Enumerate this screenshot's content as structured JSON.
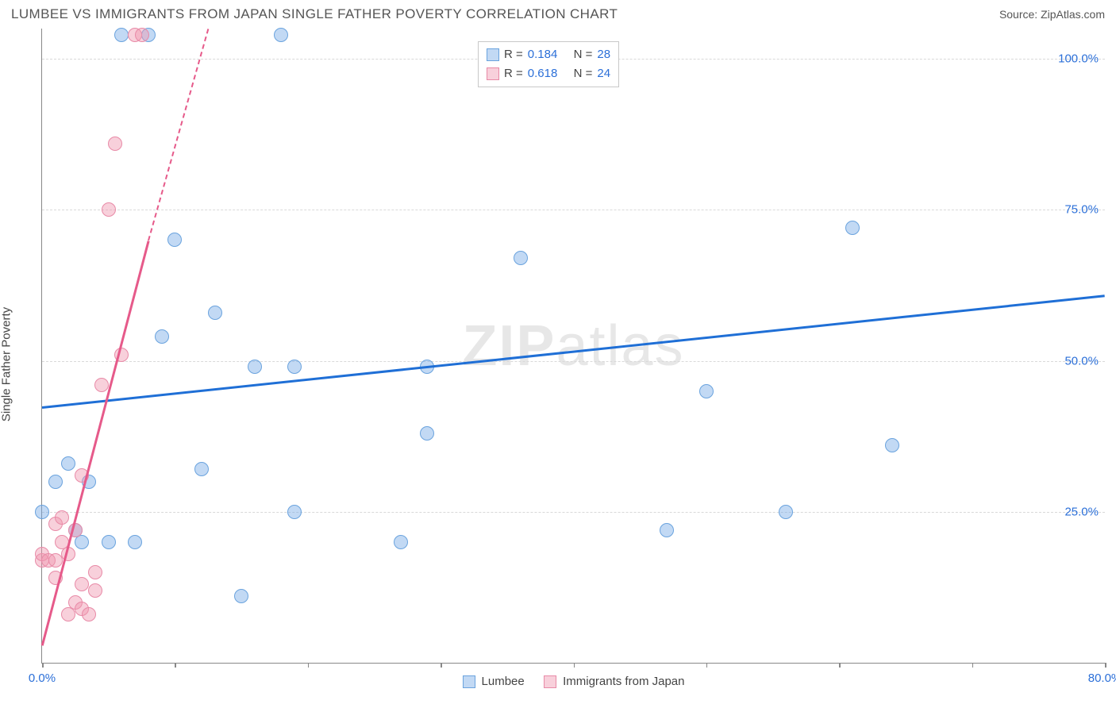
{
  "title": "LUMBEE VS IMMIGRANTS FROM JAPAN SINGLE FATHER POVERTY CORRELATION CHART",
  "source": "Source: ZipAtlas.com",
  "ylabel": "Single Father Poverty",
  "watermark_a": "ZIP",
  "watermark_b": "atlas",
  "chart": {
    "type": "scatter",
    "xlim": [
      0,
      80
    ],
    "ylim": [
      0,
      105
    ],
    "xticks": [
      0,
      10,
      20,
      30,
      40,
      50,
      60,
      70,
      80
    ],
    "xtick_labels": {
      "0": "0.0%",
      "80": "80.0%"
    },
    "yticks": [
      25,
      50,
      75,
      100
    ],
    "ytick_labels": {
      "25": "25.0%",
      "50": "50.0%",
      "75": "75.0%",
      "100": "100.0%"
    },
    "grid_color": "#d9d9d9",
    "axis_label_color": "#2b6fd8",
    "background": "#ffffff",
    "marker_radius": 9,
    "series": [
      {
        "name": "Lumbee",
        "color_fill": "rgba(120,170,230,0.45)",
        "color_stroke": "#6aa3de",
        "R": "0.184",
        "N": "28",
        "trend": {
          "x1": 0,
          "y1": 42.5,
          "x2": 80,
          "y2": 61,
          "color": "#1f6fd6",
          "width": 2.5
        },
        "points": [
          [
            0,
            25
          ],
          [
            1,
            30
          ],
          [
            2,
            33
          ],
          [
            2.5,
            22
          ],
          [
            3,
            20
          ],
          [
            3.5,
            30
          ],
          [
            5,
            20
          ],
          [
            6,
            104
          ],
          [
            7,
            20
          ],
          [
            8,
            104
          ],
          [
            9,
            54
          ],
          [
            10,
            70
          ],
          [
            12,
            32
          ],
          [
            13,
            58
          ],
          [
            15,
            11
          ],
          [
            16,
            49
          ],
          [
            18,
            104
          ],
          [
            19,
            49
          ],
          [
            19,
            25
          ],
          [
            27,
            20
          ],
          [
            29,
            49
          ],
          [
            29,
            38
          ],
          [
            36,
            67
          ],
          [
            47,
            22
          ],
          [
            50,
            45
          ],
          [
            56,
            25
          ],
          [
            61,
            72
          ],
          [
            64,
            36
          ]
        ]
      },
      {
        "name": "Immigrants from Japan",
        "color_fill": "rgba(240,150,175,0.45)",
        "color_stroke": "#e88aa7",
        "R": "0.618",
        "N": "24",
        "trend_solid": {
          "x1": 0,
          "y1": 3,
          "x2": 8,
          "y2": 70,
          "color": "#e65a8a",
          "width": 2.5
        },
        "trend_dashed": {
          "x1": 8,
          "y1": 70,
          "x2": 12.5,
          "y2": 105,
          "color": "#e65a8a",
          "width": 2
        },
        "points": [
          [
            0,
            17
          ],
          [
            0,
            18
          ],
          [
            0.5,
            17
          ],
          [
            1,
            14
          ],
          [
            1,
            23
          ],
          [
            1,
            17
          ],
          [
            1.5,
            20
          ],
          [
            1.5,
            24
          ],
          [
            2,
            18
          ],
          [
            2,
            8
          ],
          [
            2.5,
            10
          ],
          [
            2.5,
            22
          ],
          [
            3,
            13
          ],
          [
            3,
            9
          ],
          [
            3,
            31
          ],
          [
            3.5,
            8
          ],
          [
            4,
            12
          ],
          [
            4,
            15
          ],
          [
            4.5,
            46
          ],
          [
            5,
            75
          ],
          [
            5.5,
            86
          ],
          [
            6,
            51
          ],
          [
            7,
            104
          ],
          [
            7.5,
            104
          ]
        ]
      }
    ],
    "stat_legend": {
      "left_pct": 41,
      "top_pct": 2
    },
    "bottom_legend_labels": [
      "Lumbee",
      "Immigrants from Japan"
    ]
  }
}
